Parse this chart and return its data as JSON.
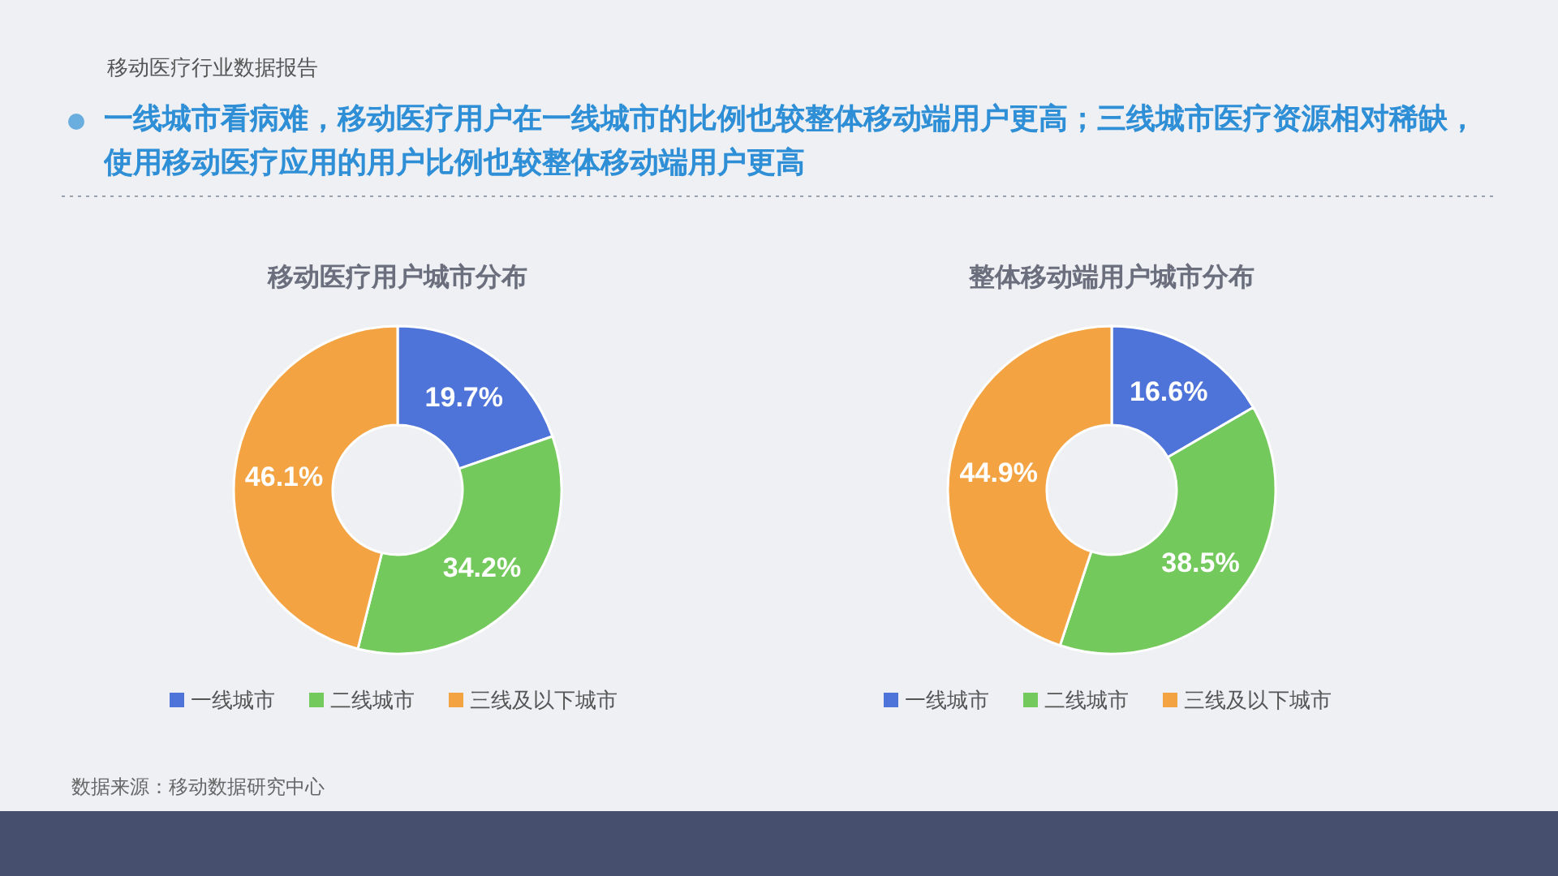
{
  "chart_data": [
    {
      "type": "other",
      "title": "移动医疗行业数据报告",
      "subtitle": "一线城市看病难，移动医疗用户在一线城市的比例也较整体移动端用户更高；三线城市医疗资源相对稀缺，使用移动医疗应用的用户比例也较整体移动端用户更高",
      "annotations": [
        "数据来源：移动数据研究中心"
      ]
    },
    {
      "type": "donut",
      "title": "移动医疗用户城市分布",
      "categories": [
        "一线城市",
        "二线城市",
        "三线及以下城市"
      ],
      "values": [
        19.7,
        34.2,
        46.1
      ],
      "value_labels": [
        "19.7%",
        "34.2%",
        "46.1%"
      ],
      "colors": [
        "#4f74d9",
        "#73c95b",
        "#f4a343"
      ],
      "legend": "bottom"
    },
    {
      "type": "donut",
      "title": "整体移动端用户城市分布",
      "categories": [
        "一线城市",
        "二线城市",
        "三线及以下城市"
      ],
      "values": [
        16.6,
        38.5,
        44.9
      ],
      "value_labels": [
        "16.6%",
        "38.5%",
        "44.9%"
      ],
      "colors": [
        "#4f74d9",
        "#73c95b",
        "#f4a343"
      ],
      "legend": "bottom"
    }
  ]
}
